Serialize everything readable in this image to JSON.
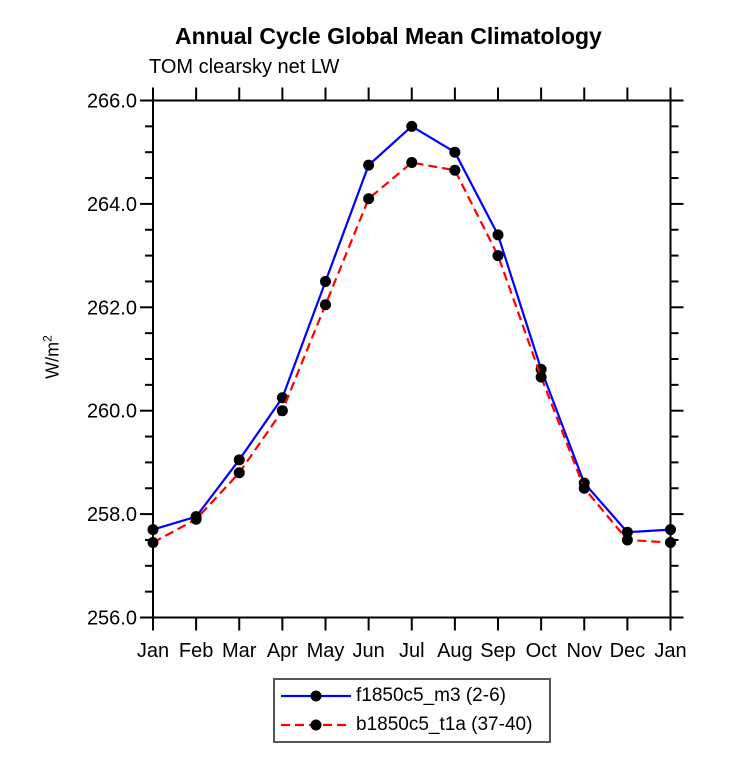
{
  "chart_data": {
    "type": "line",
    "title": "Annual Cycle Global Mean Climatology",
    "subtitle": "TOM clearsky net LW",
    "xlabel": "",
    "ylabel": "W/m²",
    "categories": [
      "Jan",
      "Feb",
      "Mar",
      "Apr",
      "May",
      "Jun",
      "Jul",
      "Aug",
      "Sep",
      "Oct",
      "Nov",
      "Dec",
      "Jan"
    ],
    "ylim": [
      256.0,
      266.0
    ],
    "ytick_major_values": [
      256.0,
      258.0,
      260.0,
      262.0,
      264.0,
      266.0
    ],
    "ytick_major_labels": [
      "256.0",
      "258.0",
      "260.0",
      "262.0",
      "264.0",
      "266.0"
    ],
    "ytick_minor_step": 0.5,
    "grid": false,
    "legend_position": "bottom-center",
    "axis_color": "#000000",
    "marker_color": "#000000",
    "series": [
      {
        "name": "f1850c5_m3 (2-6)",
        "color": "#0000ff",
        "style": "solid",
        "marker": "circle",
        "values": [
          257.7,
          257.95,
          259.05,
          260.25,
          262.5,
          264.75,
          265.5,
          265.0,
          263.4,
          260.8,
          258.6,
          257.65,
          257.7
        ]
      },
      {
        "name": "b1850c5_t1a (37-40)",
        "color": "#ff0000",
        "style": "dashed",
        "marker": "circle",
        "values": [
          257.45,
          257.9,
          258.8,
          260.0,
          262.05,
          264.1,
          264.8,
          264.65,
          263.0,
          260.65,
          258.5,
          257.5,
          257.45
        ]
      }
    ]
  }
}
